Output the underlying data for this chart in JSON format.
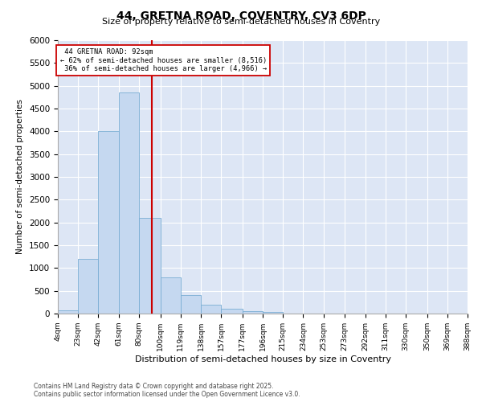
{
  "title": "44, GRETNA ROAD, COVENTRY, CV3 6DP",
  "subtitle": "Size of property relative to semi-detached houses in Coventry",
  "xlabel": "Distribution of semi-detached houses by size in Coventry",
  "ylabel": "Number of semi-detached properties",
  "bins": [
    4,
    23,
    42,
    61,
    80,
    100,
    119,
    138,
    157,
    177,
    196,
    215,
    234,
    253,
    273,
    292,
    311,
    330,
    350,
    369,
    388
  ],
  "bin_labels": [
    "4sqm",
    "23sqm",
    "42sqm",
    "61sqm",
    "80sqm",
    "100sqm",
    "119sqm",
    "138sqm",
    "157sqm",
    "177sqm",
    "196sqm",
    "215sqm",
    "234sqm",
    "253sqm",
    "273sqm",
    "292sqm",
    "311sqm",
    "330sqm",
    "350sqm",
    "369sqm",
    "388sqm"
  ],
  "values": [
    70,
    1200,
    4000,
    4850,
    2100,
    800,
    400,
    200,
    110,
    60,
    30,
    5,
    2,
    1,
    0,
    0,
    0,
    0,
    0,
    0
  ],
  "property_size": 92,
  "property_label": "44 GRETNA ROAD: 92sqm",
  "pct_smaller": 62,
  "n_smaller": 8516,
  "pct_larger": 36,
  "n_larger": 4966,
  "bar_color": "#c5d8f0",
  "bar_edge_color": "#7aadd4",
  "line_color": "#cc0000",
  "box_edge_color": "#cc0000",
  "background_color": "#dde6f5",
  "ylim": [
    0,
    6000
  ],
  "yticks": [
    0,
    500,
    1000,
    1500,
    2000,
    2500,
    3000,
    3500,
    4000,
    4500,
    5000,
    5500,
    6000
  ],
  "footer": "Contains HM Land Registry data © Crown copyright and database right 2025.\nContains public sector information licensed under the Open Government Licence v3.0."
}
